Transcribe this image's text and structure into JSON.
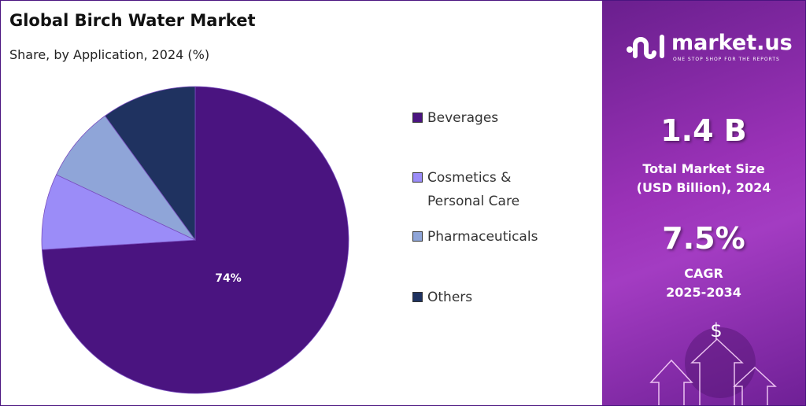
{
  "title": "Global Birch Water Market",
  "subtitle": "Share, by Application, 2024 (%)",
  "chart_data": {
    "type": "pie",
    "title": "Global Birch Water Market",
    "subtitle": "Share, by Application, 2024 (%)",
    "start_angle": "top, clockwise",
    "legend_position": "right",
    "slices": [
      {
        "label": "Beverages",
        "value": 74,
        "color": "#4a1480",
        "data_label": "74%"
      },
      {
        "label": "Cosmetics & Personal Care",
        "value": 8,
        "color": "#9b8cf8"
      },
      {
        "label": "Pharmaceuticals",
        "value": 8,
        "color": "#8fa5d8"
      },
      {
        "label": "Others",
        "value": 10,
        "color": "#1f3260"
      }
    ]
  },
  "legend": [
    {
      "line1": "Beverages",
      "line2": ""
    },
    {
      "line1": "Cosmetics &",
      "line2": "Personal Care"
    },
    {
      "line1": "Pharmaceuticals",
      "line2": ""
    },
    {
      "line1": "Others",
      "line2": ""
    }
  ],
  "panel": {
    "logo_name": "market.us",
    "logo_tagline": "ONE STOP SHOP FOR THE REPORTS",
    "market_size": "1.4 B",
    "market_size_label_1": "Total Market Size",
    "market_size_label_2": "(USD Billion), 2024",
    "cagr": "7.5%",
    "cagr_label_1": "CAGR",
    "cagr_label_2": "2025-2034",
    "dollar": "$"
  }
}
